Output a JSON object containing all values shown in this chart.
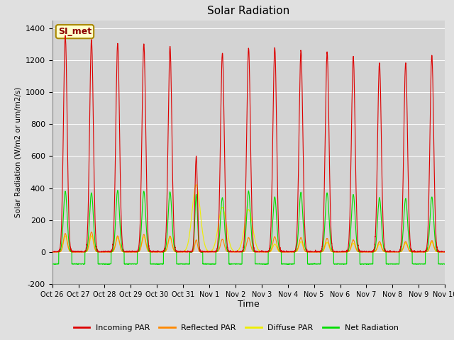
{
  "title": "Solar Radiation",
  "ylabel": "Solar Radiation (W/m2 or um/m2/s)",
  "xlabel": "Time",
  "annotation": "SI_met",
  "ylim": [
    -200,
    1450
  ],
  "yticks": [
    -200,
    0,
    200,
    400,
    600,
    800,
    1000,
    1200,
    1400
  ],
  "x_labels": [
    "Oct 26",
    "Oct 27",
    "Oct 28",
    "Oct 29",
    "Oct 30",
    "Oct 31",
    "Nov 1",
    "Nov 2",
    "Nov 3",
    "Nov 4",
    "Nov 5",
    "Nov 6",
    "Nov 7",
    "Nov 8",
    "Nov 9",
    "Nov 10"
  ],
  "colors": {
    "incoming": "#dd0000",
    "reflected": "#ff8800",
    "diffuse": "#eeee00",
    "net": "#00dd00"
  },
  "legend": [
    "Incoming PAR",
    "Reflected PAR",
    "Diffuse PAR",
    "Net Radiation"
  ],
  "fig_bg": "#e0e0e0",
  "plot_bg": "#d3d3d3",
  "n_days": 15,
  "samples_per_day": 288,
  "peaks_incoming": [
    1355,
    1330,
    1305,
    1300,
    1285,
    600,
    1245,
    1275,
    1280,
    1260,
    1250,
    1220,
    1185,
    1185,
    1230
  ],
  "widths_incoming": [
    0.1,
    0.1,
    0.1,
    0.1,
    0.1,
    0.07,
    0.1,
    0.1,
    0.1,
    0.1,
    0.1,
    0.1,
    0.1,
    0.1,
    0.1
  ],
  "peaks_reflected": [
    115,
    125,
    100,
    110,
    100,
    75,
    80,
    90,
    95,
    90,
    85,
    75,
    65,
    65,
    70
  ],
  "peaks_diffuse": [
    100,
    100,
    90,
    95,
    90,
    420,
    280,
    265,
    50,
    65,
    60,
    55,
    50,
    55,
    60
  ],
  "diffuse_widths": [
    0.1,
    0.1,
    0.1,
    0.1,
    0.1,
    0.22,
    0.22,
    0.22,
    0.1,
    0.1,
    0.1,
    0.1,
    0.1,
    0.1,
    0.1
  ],
  "peaks_net": [
    380,
    370,
    385,
    380,
    375,
    360,
    340,
    380,
    345,
    375,
    370,
    360,
    340,
    335,
    345
  ],
  "night_net": -75
}
